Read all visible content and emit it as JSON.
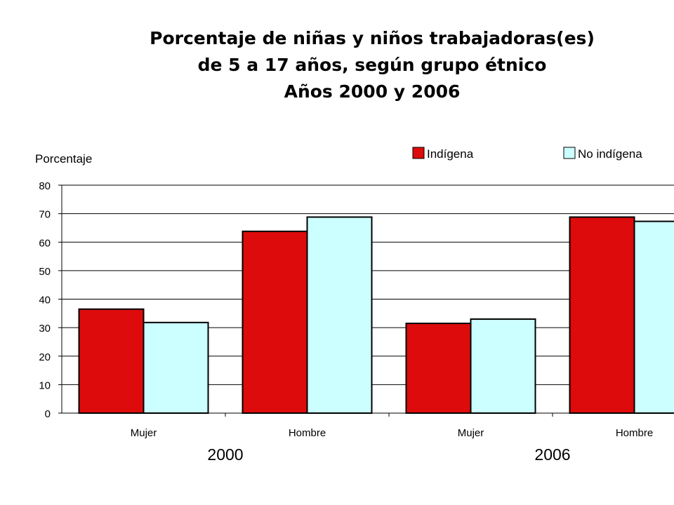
{
  "title_lines": [
    "Porcentaje de niñas y niños trabajadoras(es)",
    "de 5 a 17 años, según grupo étnico",
    "Años 2000 y 2006"
  ],
  "chart_data": {
    "type": "bar",
    "title": "Porcentaje de niñas y niños trabajadoras(es) de 5 a 17 años, según grupo étnico Años 2000 y 2006",
    "ylabel": "Porcentaje",
    "xlabel": "",
    "ylim": [
      0,
      80
    ],
    "yticks": [
      0,
      10,
      20,
      30,
      40,
      50,
      60,
      70,
      80
    ],
    "grid": true,
    "legend_position": "top-right",
    "groups": [
      {
        "year": "2000",
        "categories": [
          "Mujer",
          "Hombre"
        ]
      },
      {
        "year": "2006",
        "categories": [
          "Mujer",
          "Hombre"
        ]
      }
    ],
    "categories": [
      "Mujer",
      "Hombre",
      "Mujer",
      "Hombre"
    ],
    "series": [
      {
        "name": "Indígena",
        "color": "#dd0b0b",
        "values": [
          36.5,
          63.8,
          31.5,
          68.8
        ]
      },
      {
        "name": "No indígena",
        "color": "#ccffff",
        "values": [
          31.8,
          68.8,
          33.0,
          67.3
        ]
      }
    ]
  }
}
